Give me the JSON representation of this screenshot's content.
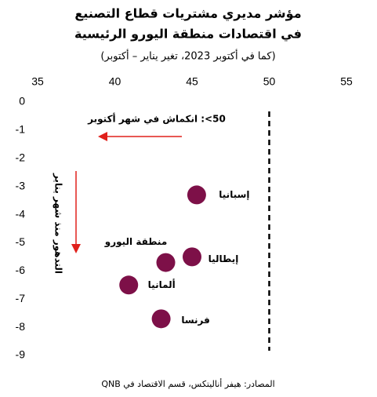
{
  "chart_data": {
    "type": "scatter",
    "title": [
      "مؤشر مديري مشتريات قطاع التصنيع",
      "في اقتصادات منطقة اليورو الرئيسية"
    ],
    "subtitle": "(كما في أكتوبر 2023، تغير يناير – أكتوبر)",
    "labels": [
      "إسبانيا",
      "منطقة اليورو",
      "إيطاليا",
      "ألمانيا",
      "فرنسا"
    ],
    "x": [
      45.3,
      43.3,
      45.0,
      40.9,
      43.0
    ],
    "y": [
      -3.3,
      -5.7,
      -5.5,
      -6.5,
      -7.7
    ],
    "color": "#7d1048",
    "threshold": 50,
    "annotations": [
      "50>: انكماش في شهر أكتوبر",
      "التدهور منذ شهر يناير"
    ],
    "xlim": [
      35,
      55
    ],
    "xticks": [
      35,
      40,
      45,
      50,
      55
    ],
    "ylim": [
      -9,
      0
    ],
    "yticks": [
      0,
      -1,
      -2,
      -3,
      -4,
      -5,
      -6,
      -7,
      -8,
      -9
    ],
    "source": "المصادر: هيفر أناليتكس، قسم الاقتصاد في QNB"
  }
}
